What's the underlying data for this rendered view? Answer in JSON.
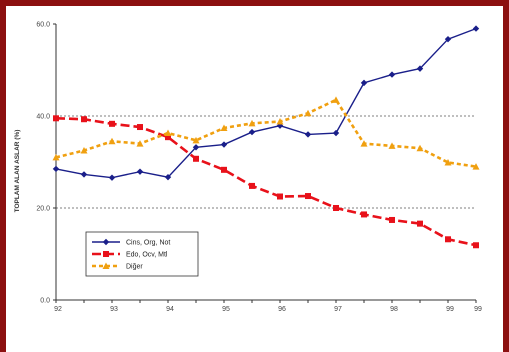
{
  "chart_data": {
    "type": "line",
    "title": "",
    "xlabel": "",
    "ylabel": "TOPLAM ALAN ASLAR (%)",
    "x": [
      "92",
      "",
      "93",
      "",
      "94",
      "",
      "95",
      "",
      "96",
      "",
      "97",
      "",
      "98",
      "",
      "99",
      "99"
    ],
    "x_tick_labels": [
      "92",
      "93",
      "94",
      "95",
      "96",
      "97",
      "98",
      "99",
      "99"
    ],
    "ylim": [
      0,
      60
    ],
    "y_ticks": [
      "0.0",
      "20.0",
      "40.0",
      "60.0"
    ],
    "grid": "horizontal dashed at 20 and 40",
    "legend_position": "lower-left",
    "series": [
      {
        "name": "Cins, Org, Not",
        "color": "#1a1f8a",
        "marker": "diamond",
        "line_style": "solid",
        "values": [
          28.5,
          27.3,
          26.6,
          27.9,
          26.7,
          33.2,
          33.8,
          36.5,
          37.9,
          36.0,
          36.3,
          47.2,
          49.0,
          50.3,
          56.7,
          59.0
        ]
      },
      {
        "name": "Edo, Ocv, Mtl",
        "color": "#e8111a",
        "marker": "square",
        "line_style": "dashed",
        "values": [
          39.5,
          39.3,
          38.3,
          37.6,
          35.4,
          30.7,
          28.3,
          24.8,
          22.5,
          22.6,
          20.0,
          18.6,
          17.4,
          16.6,
          13.2,
          11.9
        ]
      },
      {
        "name": "Diğer",
        "color": "#f0a010",
        "marker": "triangle",
        "line_style": "dotted",
        "values": [
          31.0,
          32.5,
          34.5,
          34.0,
          36.3,
          34.7,
          37.4,
          38.4,
          38.8,
          40.6,
          43.5,
          34.0,
          33.5,
          33.0,
          29.9,
          29.0
        ]
      }
    ]
  }
}
